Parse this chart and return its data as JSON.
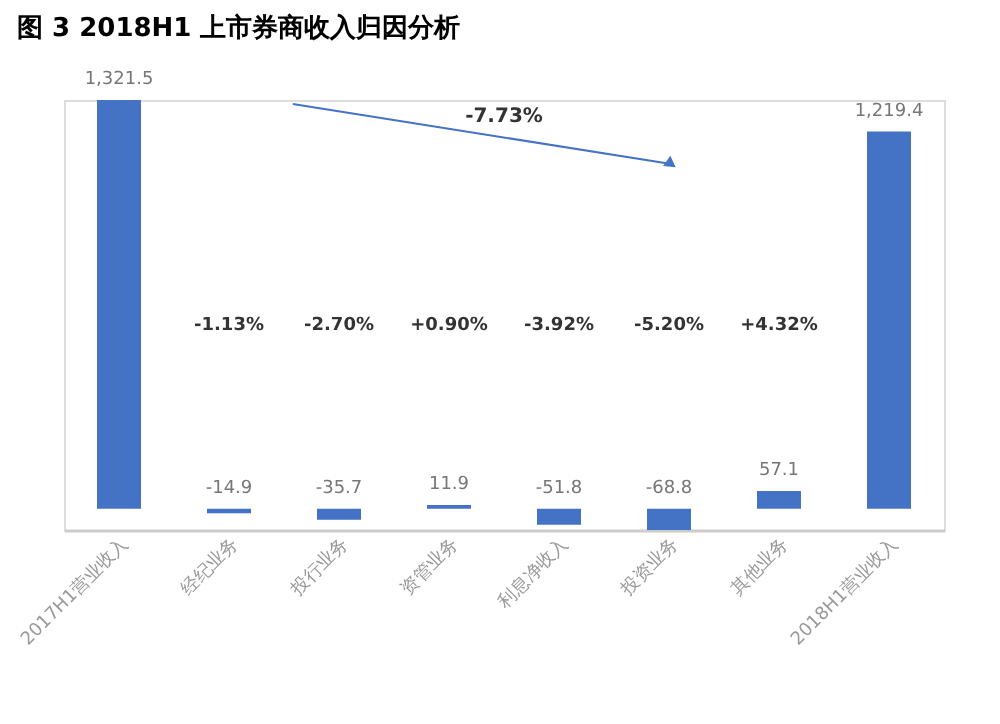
{
  "chart_data": {
    "type": "bar",
    "title": "图 3 2018H1 上市券商收入归因分析",
    "categories": [
      "2017H1营业收入",
      "经纪业务",
      "投行业务",
      "资管业务",
      "利息净收入",
      "投资业务",
      "其他业务",
      "2018H1营业收入"
    ],
    "values": [
      1321.5,
      -14.9,
      -35.7,
      11.9,
      -51.8,
      -68.8,
      57.1,
      1219.4
    ],
    "value_labels": [
      "1,321.5",
      "-14.9",
      "-35.7",
      "11.9",
      "-51.8",
      "-68.8",
      "57.1",
      "1,219.4"
    ],
    "color": "#4472c4",
    "tick_labels": "x",
    "grid": false,
    "annotations": [
      "-1.13%",
      "-2.70%",
      "+0.90%",
      "-3.92%",
      "-5.20%",
      "+4.32%",
      "-7.73%"
    ]
  }
}
